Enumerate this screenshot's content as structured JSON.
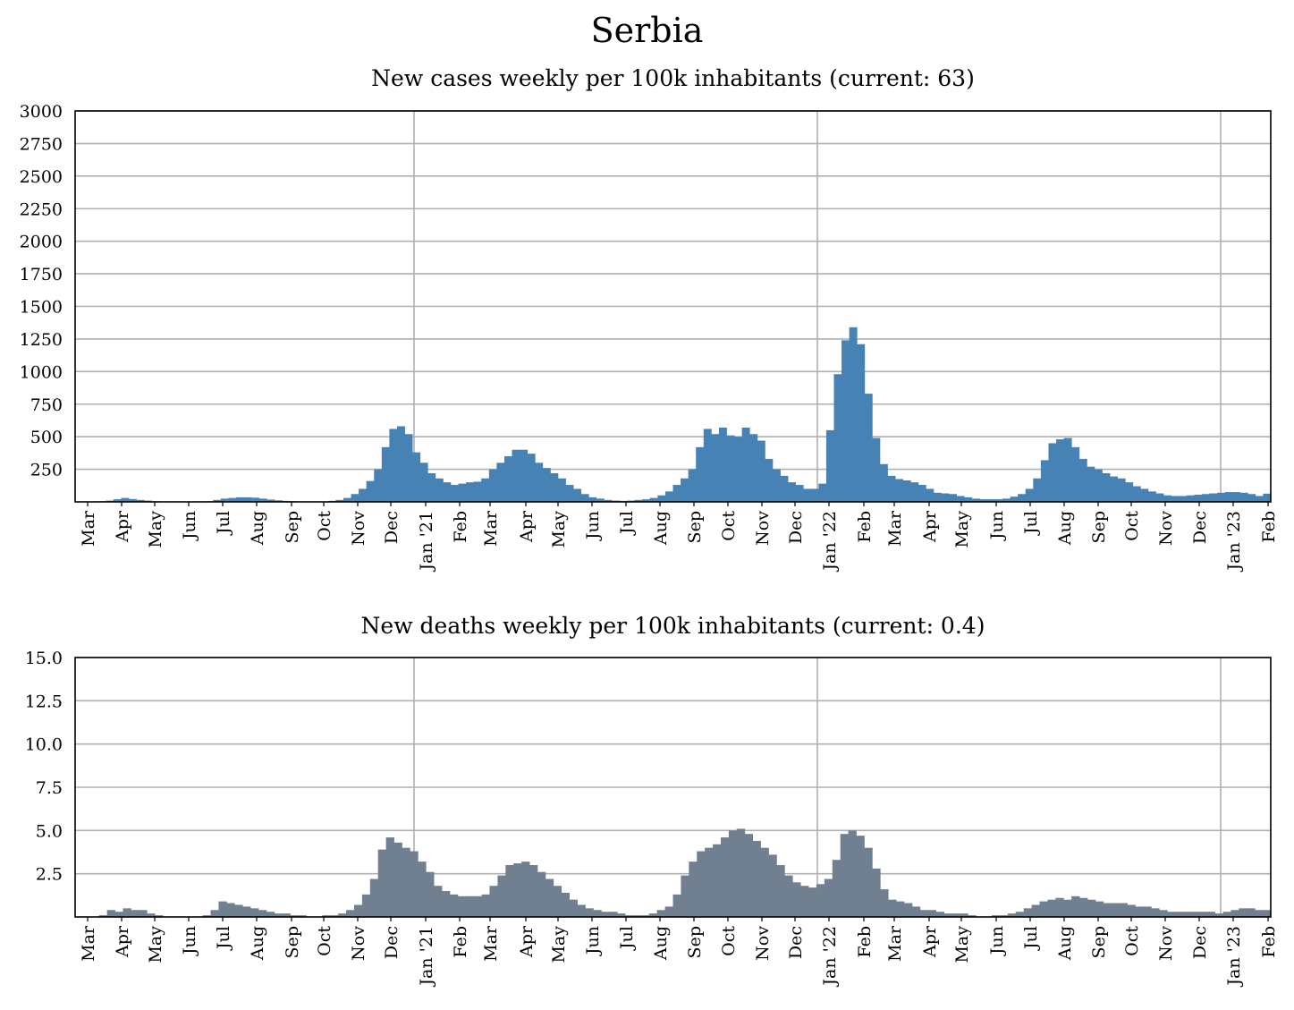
{
  "title": "Serbia",
  "colors": {
    "cases": "#4682b4",
    "deaths": "#708090",
    "grid": "#b0b0b0"
  },
  "chart_data": [
    {
      "type": "bar",
      "title": "New cases weekly per 100k inhabitants (current: 63)",
      "ylim": [
        0,
        3000
      ],
      "yticks": [
        "250",
        "500",
        "750",
        "1000",
        "1250",
        "1500",
        "1750",
        "2000",
        "2250",
        "2500",
        "2750",
        "3000"
      ],
      "xticks": [
        "Mar",
        "Apr",
        "May",
        "Jun",
        "Jul",
        "Aug",
        "Sep",
        "Oct",
        "Nov",
        "Dec",
        "Jan '21",
        "Feb",
        "Mar",
        "Apr",
        "May",
        "Jun",
        "Jul",
        "Aug",
        "Sep",
        "Oct",
        "Nov",
        "Dec",
        "Jan '22",
        "Feb",
        "Mar",
        "Apr",
        "May",
        "Jun",
        "Jul",
        "Aug",
        "Sep",
        "Oct",
        "Nov",
        "Dec",
        "Jan '23",
        "Feb"
      ],
      "grid": true,
      "values": [
        0,
        0,
        2,
        5,
        10,
        20,
        30,
        22,
        15,
        10,
        5,
        3,
        2,
        1,
        1,
        1,
        2,
        5,
        15,
        25,
        30,
        35,
        35,
        32,
        25,
        18,
        12,
        8,
        5,
        3,
        2,
        2,
        3,
        8,
        15,
        30,
        60,
        100,
        160,
        250,
        420,
        560,
        580,
        520,
        380,
        300,
        220,
        180,
        150,
        130,
        140,
        150,
        155,
        180,
        250,
        300,
        350,
        400,
        400,
        370,
        300,
        260,
        220,
        180,
        130,
        100,
        60,
        35,
        25,
        15,
        10,
        8,
        10,
        15,
        20,
        30,
        50,
        80,
        130,
        180,
        250,
        420,
        560,
        520,
        570,
        510,
        500,
        570,
        520,
        470,
        330,
        250,
        200,
        150,
        130,
        100,
        100,
        140,
        550,
        980,
        1240,
        1340,
        1210,
        830,
        490,
        290,
        200,
        175,
        165,
        150,
        130,
        100,
        70,
        65,
        60,
        45,
        35,
        25,
        20,
        20,
        20,
        25,
        40,
        60,
        100,
        180,
        320,
        450,
        480,
        490,
        420,
        330,
        270,
        250,
        220,
        195,
        180,
        150,
        120,
        100,
        80,
        65,
        50,
        45,
        45,
        50,
        55,
        60,
        65,
        70,
        75,
        75,
        70,
        60,
        45,
        63
      ]
    },
    {
      "type": "bar",
      "title": "New deaths weekly per 100k inhabitants (current: 0.4)",
      "ylim": [
        0,
        15
      ],
      "yticks": [
        "2.5",
        "5.0",
        "7.5",
        "10.0",
        "12.5",
        "15.0"
      ],
      "xticks": [
        "Mar",
        "Apr",
        "May",
        "Jun",
        "Jul",
        "Aug",
        "Sep",
        "Oct",
        "Nov",
        "Dec",
        "Jan '21",
        "Feb",
        "Mar",
        "Apr",
        "May",
        "Jun",
        "Jul",
        "Aug",
        "Sep",
        "Oct",
        "Nov",
        "Dec",
        "Jan '22",
        "Feb",
        "Mar",
        "Apr",
        "May",
        "Jun",
        "Jul",
        "Aug",
        "Sep",
        "Oct",
        "Nov",
        "Dec",
        "Jan '23",
        "Feb"
      ],
      "grid": true,
      "values": [
        0,
        0,
        0,
        0.1,
        0.4,
        0.3,
        0.5,
        0.4,
        0.4,
        0.2,
        0.1,
        0,
        0,
        0,
        0,
        0,
        0.1,
        0.4,
        0.9,
        0.8,
        0.7,
        0.6,
        0.5,
        0.4,
        0.3,
        0.2,
        0.2,
        0.1,
        0.1,
        0,
        0,
        0.1,
        0.1,
        0.2,
        0.4,
        0.7,
        1.3,
        2.2,
        3.9,
        4.6,
        4.3,
        4.0,
        3.8,
        3.2,
        2.6,
        1.8,
        1.5,
        1.3,
        1.2,
        1.2,
        1.2,
        1.3,
        1.8,
        2.4,
        3.0,
        3.1,
        3.2,
        3.0,
        2.6,
        2.2,
        1.8,
        1.4,
        1.0,
        0.7,
        0.5,
        0.4,
        0.3,
        0.3,
        0.2,
        0.1,
        0.1,
        0.1,
        0.2,
        0.4,
        0.6,
        1.3,
        2.4,
        3.2,
        3.8,
        4.0,
        4.2,
        4.6,
        5.0,
        5.1,
        4.8,
        4.4,
        4.0,
        3.6,
        3.0,
        2.4,
        2.0,
        1.8,
        1.7,
        1.9,
        2.2,
        3.3,
        4.8,
        5.0,
        4.7,
        4.0,
        2.8,
        1.6,
        1.0,
        0.9,
        0.8,
        0.6,
        0.4,
        0.4,
        0.3,
        0.2,
        0.2,
        0.2,
        0.1,
        0,
        0,
        0.1,
        0.1,
        0.2,
        0.3,
        0.5,
        0.7,
        0.9,
        1.0,
        1.1,
        1.0,
        1.2,
        1.1,
        1.0,
        0.9,
        0.8,
        0.8,
        0.8,
        0.7,
        0.6,
        0.6,
        0.5,
        0.4,
        0.3,
        0.3,
        0.3,
        0.3,
        0.3,
        0.3,
        0.2,
        0.3,
        0.4,
        0.5,
        0.5,
        0.4,
        0.4
      ]
    }
  ]
}
